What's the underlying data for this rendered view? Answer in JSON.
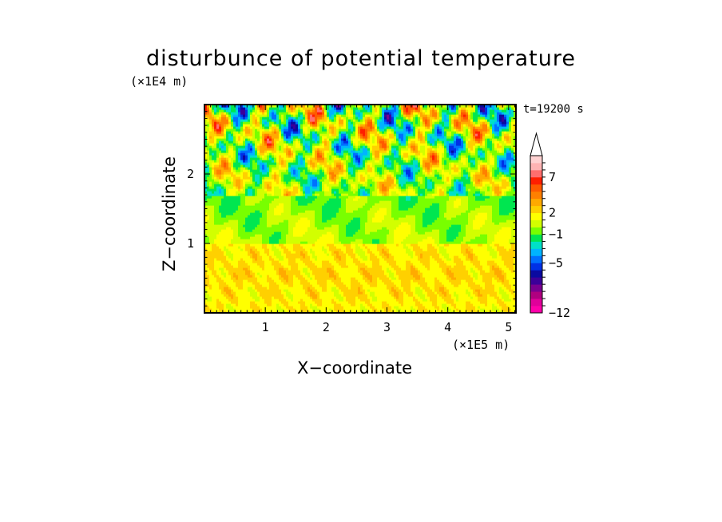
{
  "chart_data": {
    "type": "heatmap",
    "title": "disturbunce of potential temperature",
    "annotation": "t=19200 s",
    "xlabel": "X−coordinate",
    "ylabel": "Z−coordinate",
    "x_unit": "(×1E5 m)",
    "y_unit": "(×1E4 m)",
    "x_ticks": [
      1,
      2,
      3,
      4,
      5
    ],
    "y_ticks": [
      1,
      2
    ],
    "xlim": [
      0,
      5.12
    ],
    "ylim": [
      0,
      3.0
    ],
    "colorbar": {
      "levels": [
        -12,
        -11,
        -10,
        -9,
        -8,
        -7,
        -6,
        -5,
        -4,
        -3,
        -2,
        -1,
        0,
        1,
        2,
        3,
        4,
        5,
        6,
        7,
        8,
        9
      ],
      "labels": [
        "−12",
        "−5",
        "−1",
        "2",
        "7"
      ],
      "label_values": [
        -12,
        -5,
        -1,
        2,
        7
      ],
      "colors": [
        "#ff00aa",
        "#e0009a",
        "#b00080",
        "#7a0090",
        "#3c0099",
        "#0a0aa0",
        "#0030e6",
        "#0070ff",
        "#00b4ff",
        "#00e0c8",
        "#00e650",
        "#78ff00",
        "#d2ff00",
        "#ffff00",
        "#ffd000",
        "#ffaa00",
        "#ff8000",
        "#ff5a00",
        "#ff1e00",
        "#ff6e6e",
        "#ffb4b4",
        "#ffd2d2"
      ],
      "extend": "max"
    },
    "field_description": {
      "lower_layer_z_below_1": "positive values about 0 to 3",
      "middle_layer_z_1_to_1.7": "small values about -1 to 1",
      "upper_layer_z_above_1.7": "alternating positive 3 to 7 and negative -3 to -6"
    }
  }
}
